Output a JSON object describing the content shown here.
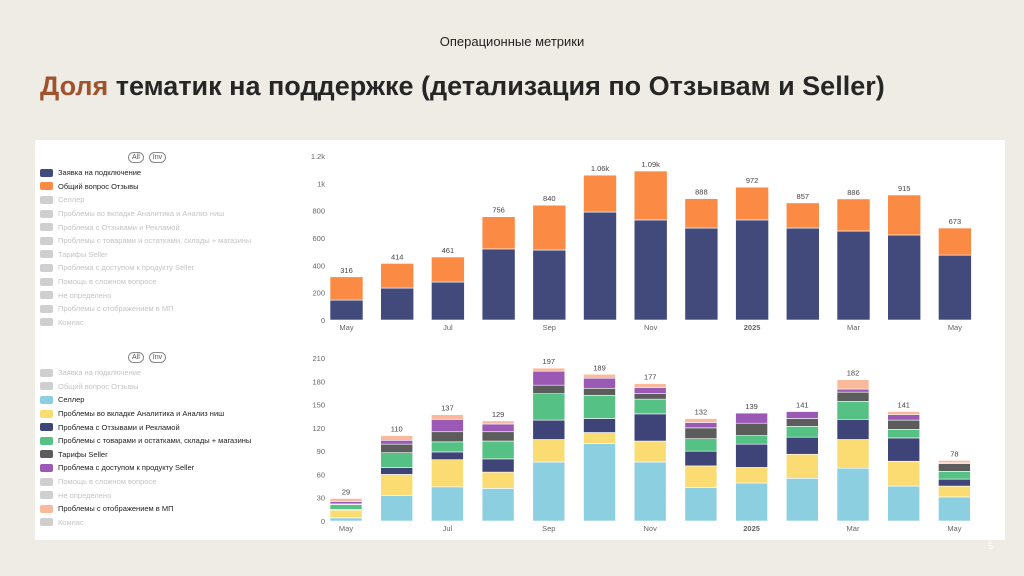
{
  "header": {
    "section": "Операционные метрики",
    "title_accent": "Доля",
    "title_rest": " тематик на поддержке (детализация по Отзывам и Seller)"
  },
  "page_number": "5",
  "legend_buttons": {
    "all": "All",
    "inv": "Inv"
  },
  "chart_data": [
    {
      "type": "bar",
      "stacked": true,
      "categories": [
        "May 2024",
        "Jun 2024",
        "Jul 2024",
        "Aug 2024",
        "Sep 2024",
        "Oct 2024",
        "Nov 2024",
        "Dec 2024",
        "Jan 2025",
        "Feb 2025",
        "Mar 2025",
        "Apr 2025",
        "May 2025"
      ],
      "tick_labels": [
        "May",
        "",
        "Jul",
        "",
        "Sep",
        "",
        "Nov",
        "",
        "2025",
        "",
        "Mar",
        "",
        "May"
      ],
      "yticks": [
        "0",
        "200",
        "400",
        "600",
        "800",
        "1k",
        "1.2k"
      ],
      "ylim": [
        0,
        1200
      ],
      "legend_position": "left",
      "legend": [
        {
          "name": "Заявка на подключение",
          "color": "#414a7a",
          "active": true
        },
        {
          "name": "Общий вопрос Отзывы",
          "color": "#fb8a45",
          "active": true
        },
        {
          "name": "Селлер",
          "active": false
        },
        {
          "name": "Проблемы во вкладке Аналитика и Анализ ниш",
          "active": false
        },
        {
          "name": "Проблема с Отзывами и Рекламой",
          "active": false
        },
        {
          "name": "Проблемы с товарами и остатками, склады + магазины",
          "active": false
        },
        {
          "name": "Тарифы Seller",
          "active": false
        },
        {
          "name": "Проблема с доступом к продукту Seller",
          "active": false
        },
        {
          "name": "Помощь в сложном вопросе",
          "active": false
        },
        {
          "name": "Не определено",
          "active": false
        },
        {
          "name": "Проблемы с отображением в МП",
          "active": false
        },
        {
          "name": "Компас",
          "active": false
        }
      ],
      "series": [
        {
          "name": "Заявка на подключение",
          "color": "#414a7a",
          "values": [
            146,
            234,
            278,
            520,
            512,
            790,
            732,
            673,
            732,
            673,
            651,
            622,
            475
          ]
        },
        {
          "name": "Общий вопрос Отзывы",
          "color": "#fb8a45",
          "values": [
            170,
            180,
            183,
            236,
            328,
            270,
            358,
            215,
            240,
            184,
            235,
            293,
            198
          ]
        }
      ],
      "total_labels": [
        "316",
        "414",
        "461",
        "756",
        "840",
        "1.06k",
        "1.09k",
        "888",
        "972",
        "857",
        "886",
        "915",
        "673"
      ]
    },
    {
      "type": "bar",
      "stacked": true,
      "categories": [
        "May 2024",
        "Jun 2024",
        "Jul 2024",
        "Aug 2024",
        "Sep 2024",
        "Oct 2024",
        "Nov 2024",
        "Dec 2024",
        "Jan 2025",
        "Feb 2025",
        "Mar 2025",
        "Apr 2025",
        "May 2025"
      ],
      "tick_labels": [
        "May",
        "",
        "Jul",
        "",
        "Sep",
        "",
        "Nov",
        "",
        "2025",
        "",
        "Mar",
        "",
        "May"
      ],
      "yticks": [
        "0",
        "30",
        "60",
        "90",
        "120",
        "150",
        "180",
        "210"
      ],
      "ylim": [
        0,
        210
      ],
      "legend_position": "left",
      "legend": [
        {
          "name": "Заявка на подключение",
          "active": false
        },
        {
          "name": "Общий вопрос Отзывы",
          "active": false
        },
        {
          "name": "Селлер",
          "color": "#8ccfe0",
          "active": true
        },
        {
          "name": "Проблемы во вкладке Аналитика и Анализ ниш",
          "color": "#fadc73",
          "active": true
        },
        {
          "name": "Проблема с Отзывами и Рекламой",
          "color": "#3e4477",
          "active": true
        },
        {
          "name": "Проблемы с товарами и остатками, склады + магазины",
          "color": "#55c184",
          "active": true
        },
        {
          "name": "Тарифы Seller",
          "color": "#5c5c5c",
          "active": true
        },
        {
          "name": "Проблема с доступом к продукту Seller",
          "color": "#9b59b6",
          "active": true
        },
        {
          "name": "Помощь в сложном вопросе",
          "active": false
        },
        {
          "name": "Не определено",
          "active": false
        },
        {
          "name": "Проблемы с отображением в МП",
          "color": "#f9b99a",
          "active": true
        },
        {
          "name": "Компас",
          "active": false
        }
      ],
      "series": [
        {
          "name": "Селлер",
          "color": "#8ccfe0",
          "values": [
            4,
            33,
            44,
            42,
            76,
            100,
            76,
            43,
            49,
            55,
            68,
            45,
            31
          ]
        },
        {
          "name": "Проблемы во вкладке Аналитика и Анализ ниш",
          "color": "#fadc73",
          "values": [
            10,
            27,
            35,
            21,
            29,
            14,
            27,
            28,
            20,
            31,
            37,
            32,
            14
          ]
        },
        {
          "name": "Проблема с Отзывами и Рекламой",
          "color": "#3e4477",
          "values": [
            1,
            9,
            10,
            17,
            25,
            18,
            35,
            19,
            30,
            22,
            26,
            30,
            9
          ]
        },
        {
          "name": "Проблемы с товарами и остатками, склады + магазины",
          "color": "#55c184",
          "values": [
            6,
            19,
            13,
            23,
            34,
            30,
            19,
            16,
            11,
            14,
            23,
            11,
            10
          ]
        },
        {
          "name": "Тарифы Seller",
          "color": "#5c5c5c",
          "values": [
            1,
            11,
            13,
            12,
            11,
            9,
            7,
            14,
            16,
            10,
            12,
            12,
            10
          ]
        },
        {
          "name": "Проблема с доступом к продукту Seller",
          "color": "#9b59b6",
          "values": [
            3,
            5,
            16,
            10,
            18,
            13,
            8,
            7,
            13,
            9,
            4,
            7,
            1
          ]
        },
        {
          "name": "Проблемы с отображением в МП",
          "color": "#f9b99a",
          "values": [
            4,
            6,
            6,
            4,
            4,
            5,
            5,
            5,
            0,
            0,
            12,
            4,
            3
          ]
        }
      ],
      "total_labels": [
        "29",
        "110",
        "137",
        "129",
        "197",
        "189",
        "177",
        "132",
        "139",
        "141",
        "182",
        "141",
        "78"
      ]
    }
  ]
}
